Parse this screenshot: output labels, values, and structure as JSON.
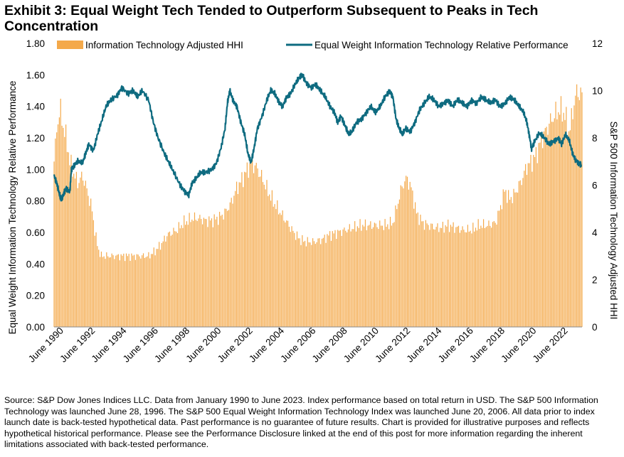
{
  "title": "Exhibit 3: Equal Weight Tech Tended to Outperform Subsequent to Peaks in Tech Concentration",
  "source": "Source: S&P Dow Jones Indices LLC. Data from January 1990 to June 2023. Index performance based on total return in USD. The S&P 500 Information Technology was launched June 28, 1996. The S&P 500 Equal Weight Information Technology Index was launched June 20, 2006. All data prior to index launch date is back-tested hypothetical data. Past performance is no guarantee of future results. Chart is provided for illustrative purposes and reflects hypothetical historical performance. Please see the Performance Disclosure linked at the end of this post for more information regarding the inherent limitations associated with back-tested performance.",
  "chart_data": {
    "type": "bar+line",
    "xlabel": "",
    "ylabel_left": "Equal Weight Information Technology Relative Performance",
    "ylabel_right": "S&P 500 Information Technology Adjusted HHI",
    "ylim_left": [
      0,
      1.8
    ],
    "ylim_right": [
      0,
      12
    ],
    "yticks_left": [
      "0.00",
      "0.20",
      "0.40",
      "0.60",
      "0.80",
      "1.00",
      "1.20",
      "1.40",
      "1.60",
      "1.80"
    ],
    "yticks_right": [
      "0",
      "2",
      "4",
      "6",
      "8",
      "10",
      "12"
    ],
    "x_tick_labels": [
      "June 1990",
      "June 1992",
      "June 1994",
      "June 1996",
      "June 1998",
      "June 2000",
      "June 2002",
      "June 2004",
      "June 2006",
      "June 2008",
      "June 2010",
      "June 2012",
      "June 2014",
      "June 2016",
      "June 2018",
      "June 2020",
      "June 2022"
    ],
    "x_range": [
      1990.0,
      2023.5
    ],
    "grid": false,
    "legend": "top",
    "colors": {
      "bars": "#F4A94A",
      "line": "#0E6B80"
    },
    "series": [
      {
        "name": "Information Technology Adjusted HHI",
        "type": "bar",
        "axis": "right",
        "points": [
          [
            1990.0,
            7.0
          ],
          [
            1990.2,
            8.6
          ],
          [
            1990.4,
            9.2
          ],
          [
            1990.6,
            8.4
          ],
          [
            1990.8,
            7.9
          ],
          [
            1991.0,
            7.0
          ],
          [
            1991.3,
            6.4
          ],
          [
            1991.5,
            6.1
          ],
          [
            1991.8,
            6.4
          ],
          [
            1992.0,
            6.0
          ],
          [
            1992.2,
            5.5
          ],
          [
            1992.4,
            5.0
          ],
          [
            1992.6,
            4.0
          ],
          [
            1992.8,
            3.3
          ],
          [
            1993.0,
            3.0
          ],
          [
            1993.5,
            3.0
          ],
          [
            1994.0,
            3.0
          ],
          [
            1994.5,
            3.0
          ],
          [
            1995.0,
            3.0
          ],
          [
            1995.5,
            3.0
          ],
          [
            1996.0,
            3.0
          ],
          [
            1996.4,
            3.2
          ],
          [
            1996.8,
            3.5
          ],
          [
            1997.2,
            3.9
          ],
          [
            1997.5,
            4.0
          ],
          [
            1997.8,
            4.1
          ],
          [
            1998.2,
            4.4
          ],
          [
            1998.5,
            4.5
          ],
          [
            1998.8,
            4.6
          ],
          [
            1999.2,
            4.6
          ],
          [
            1999.6,
            4.5
          ],
          [
            2000.0,
            4.5
          ],
          [
            2000.4,
            4.6
          ],
          [
            2000.8,
            4.8
          ],
          [
            2001.2,
            5.2
          ],
          [
            2001.6,
            5.9
          ],
          [
            2001.9,
            6.2
          ],
          [
            2002.2,
            6.6
          ],
          [
            2002.5,
            6.9
          ],
          [
            2002.8,
            6.8
          ],
          [
            2003.2,
            6.3
          ],
          [
            2003.6,
            5.7
          ],
          [
            2004.0,
            5.2
          ],
          [
            2004.4,
            4.8
          ],
          [
            2004.8,
            4.4
          ],
          [
            2005.2,
            4.0
          ],
          [
            2005.6,
            3.7
          ],
          [
            2006.0,
            3.6
          ],
          [
            2006.5,
            3.6
          ],
          [
            2007.0,
            3.7
          ],
          [
            2007.5,
            3.9
          ],
          [
            2008.0,
            4.0
          ],
          [
            2008.5,
            4.1
          ],
          [
            2009.0,
            4.2
          ],
          [
            2009.5,
            4.3
          ],
          [
            2010.0,
            4.3
          ],
          [
            2010.5,
            4.3
          ],
          [
            2011.0,
            4.3
          ],
          [
            2011.5,
            4.4
          ],
          [
            2011.8,
            5.2
          ],
          [
            2012.1,
            6.0
          ],
          [
            2012.4,
            6.3
          ],
          [
            2012.7,
            5.8
          ],
          [
            2013.0,
            4.8
          ],
          [
            2013.4,
            4.4
          ],
          [
            2013.8,
            4.3
          ],
          [
            2014.2,
            4.2
          ],
          [
            2014.6,
            4.2
          ],
          [
            2015.0,
            4.3
          ],
          [
            2015.5,
            4.2
          ],
          [
            2016.0,
            4.1
          ],
          [
            2016.5,
            4.1
          ],
          [
            2017.0,
            4.3
          ],
          [
            2017.5,
            4.3
          ],
          [
            2018.0,
            4.4
          ],
          [
            2018.3,
            5.0
          ],
          [
            2018.6,
            5.8
          ],
          [
            2018.9,
            5.4
          ],
          [
            2019.2,
            5.6
          ],
          [
            2019.6,
            6.1
          ],
          [
            2020.0,
            6.8
          ],
          [
            2020.3,
            7.0
          ],
          [
            2020.6,
            7.3
          ],
          [
            2020.9,
            7.9
          ],
          [
            2021.2,
            8.3
          ],
          [
            2021.5,
            8.7
          ],
          [
            2021.8,
            9.0
          ],
          [
            2022.1,
            9.2
          ],
          [
            2022.4,
            9.0
          ],
          [
            2022.7,
            8.2
          ],
          [
            2023.0,
            9.5
          ],
          [
            2023.2,
            10.0
          ],
          [
            2023.45,
            9.8
          ]
        ]
      },
      {
        "name": "Equal Weight Information Technology Relative Performance",
        "type": "line",
        "axis": "left",
        "points": [
          [
            1990.0,
            0.96
          ],
          [
            1990.15,
            0.92
          ],
          [
            1990.3,
            0.86
          ],
          [
            1990.45,
            0.8
          ],
          [
            1990.6,
            0.84
          ],
          [
            1990.75,
            0.88
          ],
          [
            1991.0,
            0.86
          ],
          [
            1991.1,
            1.0
          ],
          [
            1991.25,
            1.02
          ],
          [
            1991.5,
            1.05
          ],
          [
            1991.8,
            1.04
          ],
          [
            1992.0,
            1.1
          ],
          [
            1992.2,
            1.16
          ],
          [
            1992.5,
            1.12
          ],
          [
            1992.75,
            1.22
          ],
          [
            1993.0,
            1.3
          ],
          [
            1993.3,
            1.4
          ],
          [
            1993.6,
            1.44
          ],
          [
            1994.0,
            1.47
          ],
          [
            1994.3,
            1.52
          ],
          [
            1994.7,
            1.48
          ],
          [
            1995.0,
            1.5
          ],
          [
            1995.3,
            1.46
          ],
          [
            1995.6,
            1.5
          ],
          [
            1996.0,
            1.44
          ],
          [
            1996.3,
            1.3
          ],
          [
            1996.6,
            1.2
          ],
          [
            1997.0,
            1.1
          ],
          [
            1997.3,
            1.04
          ],
          [
            1997.6,
            0.98
          ],
          [
            1998.0,
            0.9
          ],
          [
            1998.3,
            0.86
          ],
          [
            1998.55,
            0.84
          ],
          [
            1998.75,
            0.91
          ],
          [
            1999.0,
            0.94
          ],
          [
            1999.3,
            0.98
          ],
          [
            1999.6,
            0.98
          ],
          [
            2000.0,
            1.0
          ],
          [
            2000.3,
            1.04
          ],
          [
            2000.6,
            1.14
          ],
          [
            2000.85,
            1.26
          ],
          [
            2001.0,
            1.42
          ],
          [
            2001.15,
            1.5
          ],
          [
            2001.35,
            1.44
          ],
          [
            2001.6,
            1.4
          ],
          [
            2001.85,
            1.3
          ],
          [
            2002.1,
            1.22
          ],
          [
            2002.3,
            1.1
          ],
          [
            2002.5,
            1.04
          ],
          [
            2002.7,
            1.14
          ],
          [
            2002.9,
            1.26
          ],
          [
            2003.2,
            1.34
          ],
          [
            2003.5,
            1.44
          ],
          [
            2003.75,
            1.5
          ],
          [
            2004.0,
            1.48
          ],
          [
            2004.25,
            1.43
          ],
          [
            2004.5,
            1.4
          ],
          [
            2004.75,
            1.46
          ],
          [
            2005.0,
            1.48
          ],
          [
            2005.3,
            1.54
          ],
          [
            2005.55,
            1.58
          ],
          [
            2005.75,
            1.6
          ],
          [
            2006.0,
            1.55
          ],
          [
            2006.3,
            1.52
          ],
          [
            2006.6,
            1.54
          ],
          [
            2006.9,
            1.5
          ],
          [
            2007.2,
            1.46
          ],
          [
            2007.5,
            1.4
          ],
          [
            2007.8,
            1.36
          ],
          [
            2008.0,
            1.3
          ],
          [
            2008.2,
            1.34
          ],
          [
            2008.45,
            1.28
          ],
          [
            2008.7,
            1.22
          ],
          [
            2008.9,
            1.24
          ],
          [
            2009.2,
            1.3
          ],
          [
            2009.5,
            1.32
          ],
          [
            2009.8,
            1.36
          ],
          [
            2010.1,
            1.4
          ],
          [
            2010.4,
            1.36
          ],
          [
            2010.7,
            1.4
          ],
          [
            2011.0,
            1.46
          ],
          [
            2011.3,
            1.5
          ],
          [
            2011.5,
            1.46
          ],
          [
            2011.7,
            1.32
          ],
          [
            2011.9,
            1.26
          ],
          [
            2012.1,
            1.22
          ],
          [
            2012.3,
            1.26
          ],
          [
            2012.6,
            1.24
          ],
          [
            2012.9,
            1.3
          ],
          [
            2013.2,
            1.38
          ],
          [
            2013.5,
            1.42
          ],
          [
            2013.8,
            1.46
          ],
          [
            2014.1,
            1.44
          ],
          [
            2014.4,
            1.4
          ],
          [
            2014.7,
            1.42
          ],
          [
            2015.0,
            1.44
          ],
          [
            2015.3,
            1.4
          ],
          [
            2015.6,
            1.44
          ],
          [
            2015.9,
            1.42
          ],
          [
            2016.2,
            1.4
          ],
          [
            2016.5,
            1.44
          ],
          [
            2016.8,
            1.42
          ],
          [
            2017.1,
            1.46
          ],
          [
            2017.4,
            1.44
          ],
          [
            2017.7,
            1.42
          ],
          [
            2018.0,
            1.44
          ],
          [
            2018.3,
            1.4
          ],
          [
            2018.6,
            1.42
          ],
          [
            2018.9,
            1.46
          ],
          [
            2019.2,
            1.44
          ],
          [
            2019.5,
            1.4
          ],
          [
            2019.8,
            1.36
          ],
          [
            2020.0,
            1.3
          ],
          [
            2020.15,
            1.22
          ],
          [
            2020.3,
            1.13
          ],
          [
            2020.5,
            1.18
          ],
          [
            2020.8,
            1.23
          ],
          [
            2021.1,
            1.2
          ],
          [
            2021.4,
            1.16
          ],
          [
            2021.7,
            1.18
          ],
          [
            2022.0,
            1.2
          ],
          [
            2022.2,
            1.16
          ],
          [
            2022.45,
            1.22
          ],
          [
            2022.7,
            1.18
          ],
          [
            2022.9,
            1.1
          ],
          [
            2023.1,
            1.06
          ],
          [
            2023.3,
            1.04
          ],
          [
            2023.45,
            1.03
          ]
        ]
      }
    ]
  }
}
